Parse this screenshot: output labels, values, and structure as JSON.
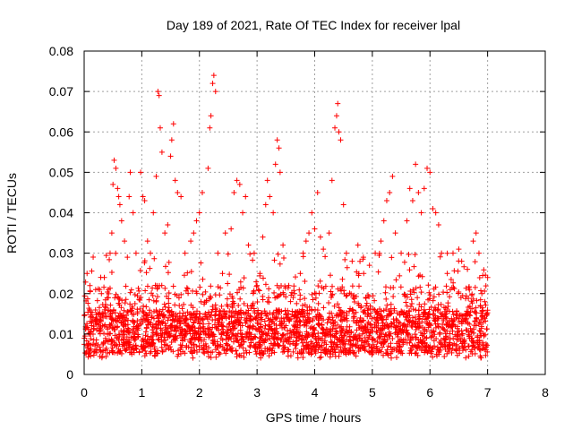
{
  "chart_data": {
    "type": "scatter",
    "title": "Day 189 of 2021, Rate Of TEC Index for receiver lpal",
    "xlabel": "GPS time / hours",
    "ylabel": "ROTI / TECUs",
    "xlim": [
      0,
      8
    ],
    "ylim": [
      0,
      0.08
    ],
    "x_ticks": [
      "0",
      "1",
      "2",
      "3",
      "4",
      "5",
      "6",
      "7",
      "8"
    ],
    "y_ticks": [
      "0",
      "0.01",
      "0.02",
      "0.03",
      "0.04",
      "0.05",
      "0.06",
      "0.07",
      "0.08"
    ],
    "x_tick_values": [
      0,
      1,
      2,
      3,
      4,
      5,
      6,
      7,
      8
    ],
    "y_tick_values": [
      0,
      0.01,
      0.02,
      0.03,
      0.04,
      0.05,
      0.06,
      0.07,
      0.08
    ],
    "grid": true,
    "marker": "plus",
    "marker_color": "#ff0000",
    "data_x_range": [
      0,
      7.0
    ],
    "series": [
      {
        "points": [
          [
            0.05,
            0.025
          ],
          [
            0.1,
            0.022
          ],
          [
            0.2,
            0.021
          ],
          [
            0.3,
            0.02
          ],
          [
            0.35,
            0.024
          ],
          [
            0.45,
            0.03
          ],
          [
            0.48,
            0.035
          ],
          [
            0.5,
            0.047
          ],
          [
            0.52,
            0.053
          ],
          [
            0.55,
            0.051
          ],
          [
            0.58,
            0.046
          ],
          [
            0.6,
            0.044
          ],
          [
            0.62,
            0.042
          ],
          [
            0.65,
            0.038
          ],
          [
            0.7,
            0.033
          ],
          [
            0.75,
            0.029
          ],
          [
            0.78,
            0.044
          ],
          [
            0.8,
            0.05
          ],
          [
            0.85,
            0.04
          ],
          [
            0.9,
            0.03
          ],
          [
            0.98,
            0.05
          ],
          [
            1.02,
            0.044
          ],
          [
            1.05,
            0.043
          ],
          [
            1.1,
            0.033
          ],
          [
            1.15,
            0.03
          ],
          [
            1.2,
            0.04
          ],
          [
            1.25,
            0.049
          ],
          [
            1.28,
            0.07
          ],
          [
            1.3,
            0.069
          ],
          [
            1.32,
            0.061
          ],
          [
            1.35,
            0.055
          ],
          [
            1.4,
            0.035
          ],
          [
            1.45,
            0.037
          ],
          [
            1.5,
            0.054
          ],
          [
            1.52,
            0.058
          ],
          [
            1.55,
            0.062
          ],
          [
            1.58,
            0.048
          ],
          [
            1.62,
            0.045
          ],
          [
            1.68,
            0.044
          ],
          [
            1.75,
            0.03
          ],
          [
            1.85,
            0.033
          ],
          [
            1.9,
            0.035
          ],
          [
            1.95,
            0.038
          ],
          [
            2.0,
            0.04
          ],
          [
            2.05,
            0.045
          ],
          [
            2.15,
            0.051
          ],
          [
            2.18,
            0.061
          ],
          [
            2.2,
            0.064
          ],
          [
            2.23,
            0.072
          ],
          [
            2.25,
            0.074
          ],
          [
            2.28,
            0.07
          ],
          [
            2.32,
            0.03
          ],
          [
            2.4,
            0.025
          ],
          [
            2.45,
            0.035
          ],
          [
            2.55,
            0.036
          ],
          [
            2.6,
            0.045
          ],
          [
            2.65,
            0.048
          ],
          [
            2.7,
            0.047
          ],
          [
            2.75,
            0.04
          ],
          [
            2.8,
            0.044
          ],
          [
            2.85,
            0.032
          ],
          [
            2.95,
            0.03
          ],
          [
            3.0,
            0.022
          ],
          [
            3.05,
            0.025
          ],
          [
            3.1,
            0.034
          ],
          [
            3.15,
            0.042
          ],
          [
            3.18,
            0.048
          ],
          [
            3.22,
            0.044
          ],
          [
            3.28,
            0.04
          ],
          [
            3.32,
            0.052
          ],
          [
            3.35,
            0.058
          ],
          [
            3.38,
            0.056
          ],
          [
            3.4,
            0.05
          ],
          [
            3.45,
            0.032
          ],
          [
            3.55,
            0.022
          ],
          [
            3.65,
            0.02
          ],
          [
            3.75,
            0.025
          ],
          [
            3.8,
            0.03
          ],
          [
            3.85,
            0.033
          ],
          [
            3.9,
            0.035
          ],
          [
            3.95,
            0.04
          ],
          [
            4.0,
            0.036
          ],
          [
            4.05,
            0.045
          ],
          [
            4.1,
            0.034
          ],
          [
            4.15,
            0.031
          ],
          [
            4.25,
            0.035
          ],
          [
            4.3,
            0.048
          ],
          [
            4.35,
            0.061
          ],
          [
            4.38,
            0.064
          ],
          [
            4.4,
            0.067
          ],
          [
            4.42,
            0.06
          ],
          [
            4.45,
            0.058
          ],
          [
            4.5,
            0.042
          ],
          [
            4.55,
            0.03
          ],
          [
            4.65,
            0.028
          ],
          [
            4.75,
            0.032
          ],
          [
            4.85,
            0.025
          ],
          [
            4.95,
            0.027
          ],
          [
            5.05,
            0.03
          ],
          [
            5.15,
            0.033
          ],
          [
            5.2,
            0.038
          ],
          [
            5.25,
            0.043
          ],
          [
            5.3,
            0.045
          ],
          [
            5.35,
            0.049
          ],
          [
            5.4,
            0.035
          ],
          [
            5.5,
            0.03
          ],
          [
            5.6,
            0.038
          ],
          [
            5.65,
            0.046
          ],
          [
            5.7,
            0.043
          ],
          [
            5.75,
            0.052
          ],
          [
            5.8,
            0.045
          ],
          [
            5.85,
            0.04
          ],
          [
            5.9,
            0.046
          ],
          [
            5.95,
            0.051
          ],
          [
            6.0,
            0.05
          ],
          [
            6.05,
            0.041
          ],
          [
            6.1,
            0.04
          ],
          [
            6.15,
            0.037
          ],
          [
            6.2,
            0.03
          ],
          [
            6.3,
            0.025
          ],
          [
            6.4,
            0.03
          ],
          [
            6.5,
            0.031
          ],
          [
            6.55,
            0.028
          ],
          [
            6.65,
            0.026
          ],
          [
            6.75,
            0.033
          ],
          [
            6.8,
            0.035
          ],
          [
            6.85,
            0.03
          ],
          [
            6.9,
            0.02
          ],
          [
            6.95,
            0.018
          ],
          [
            7.0,
            0.024
          ]
        ]
      }
    ]
  }
}
